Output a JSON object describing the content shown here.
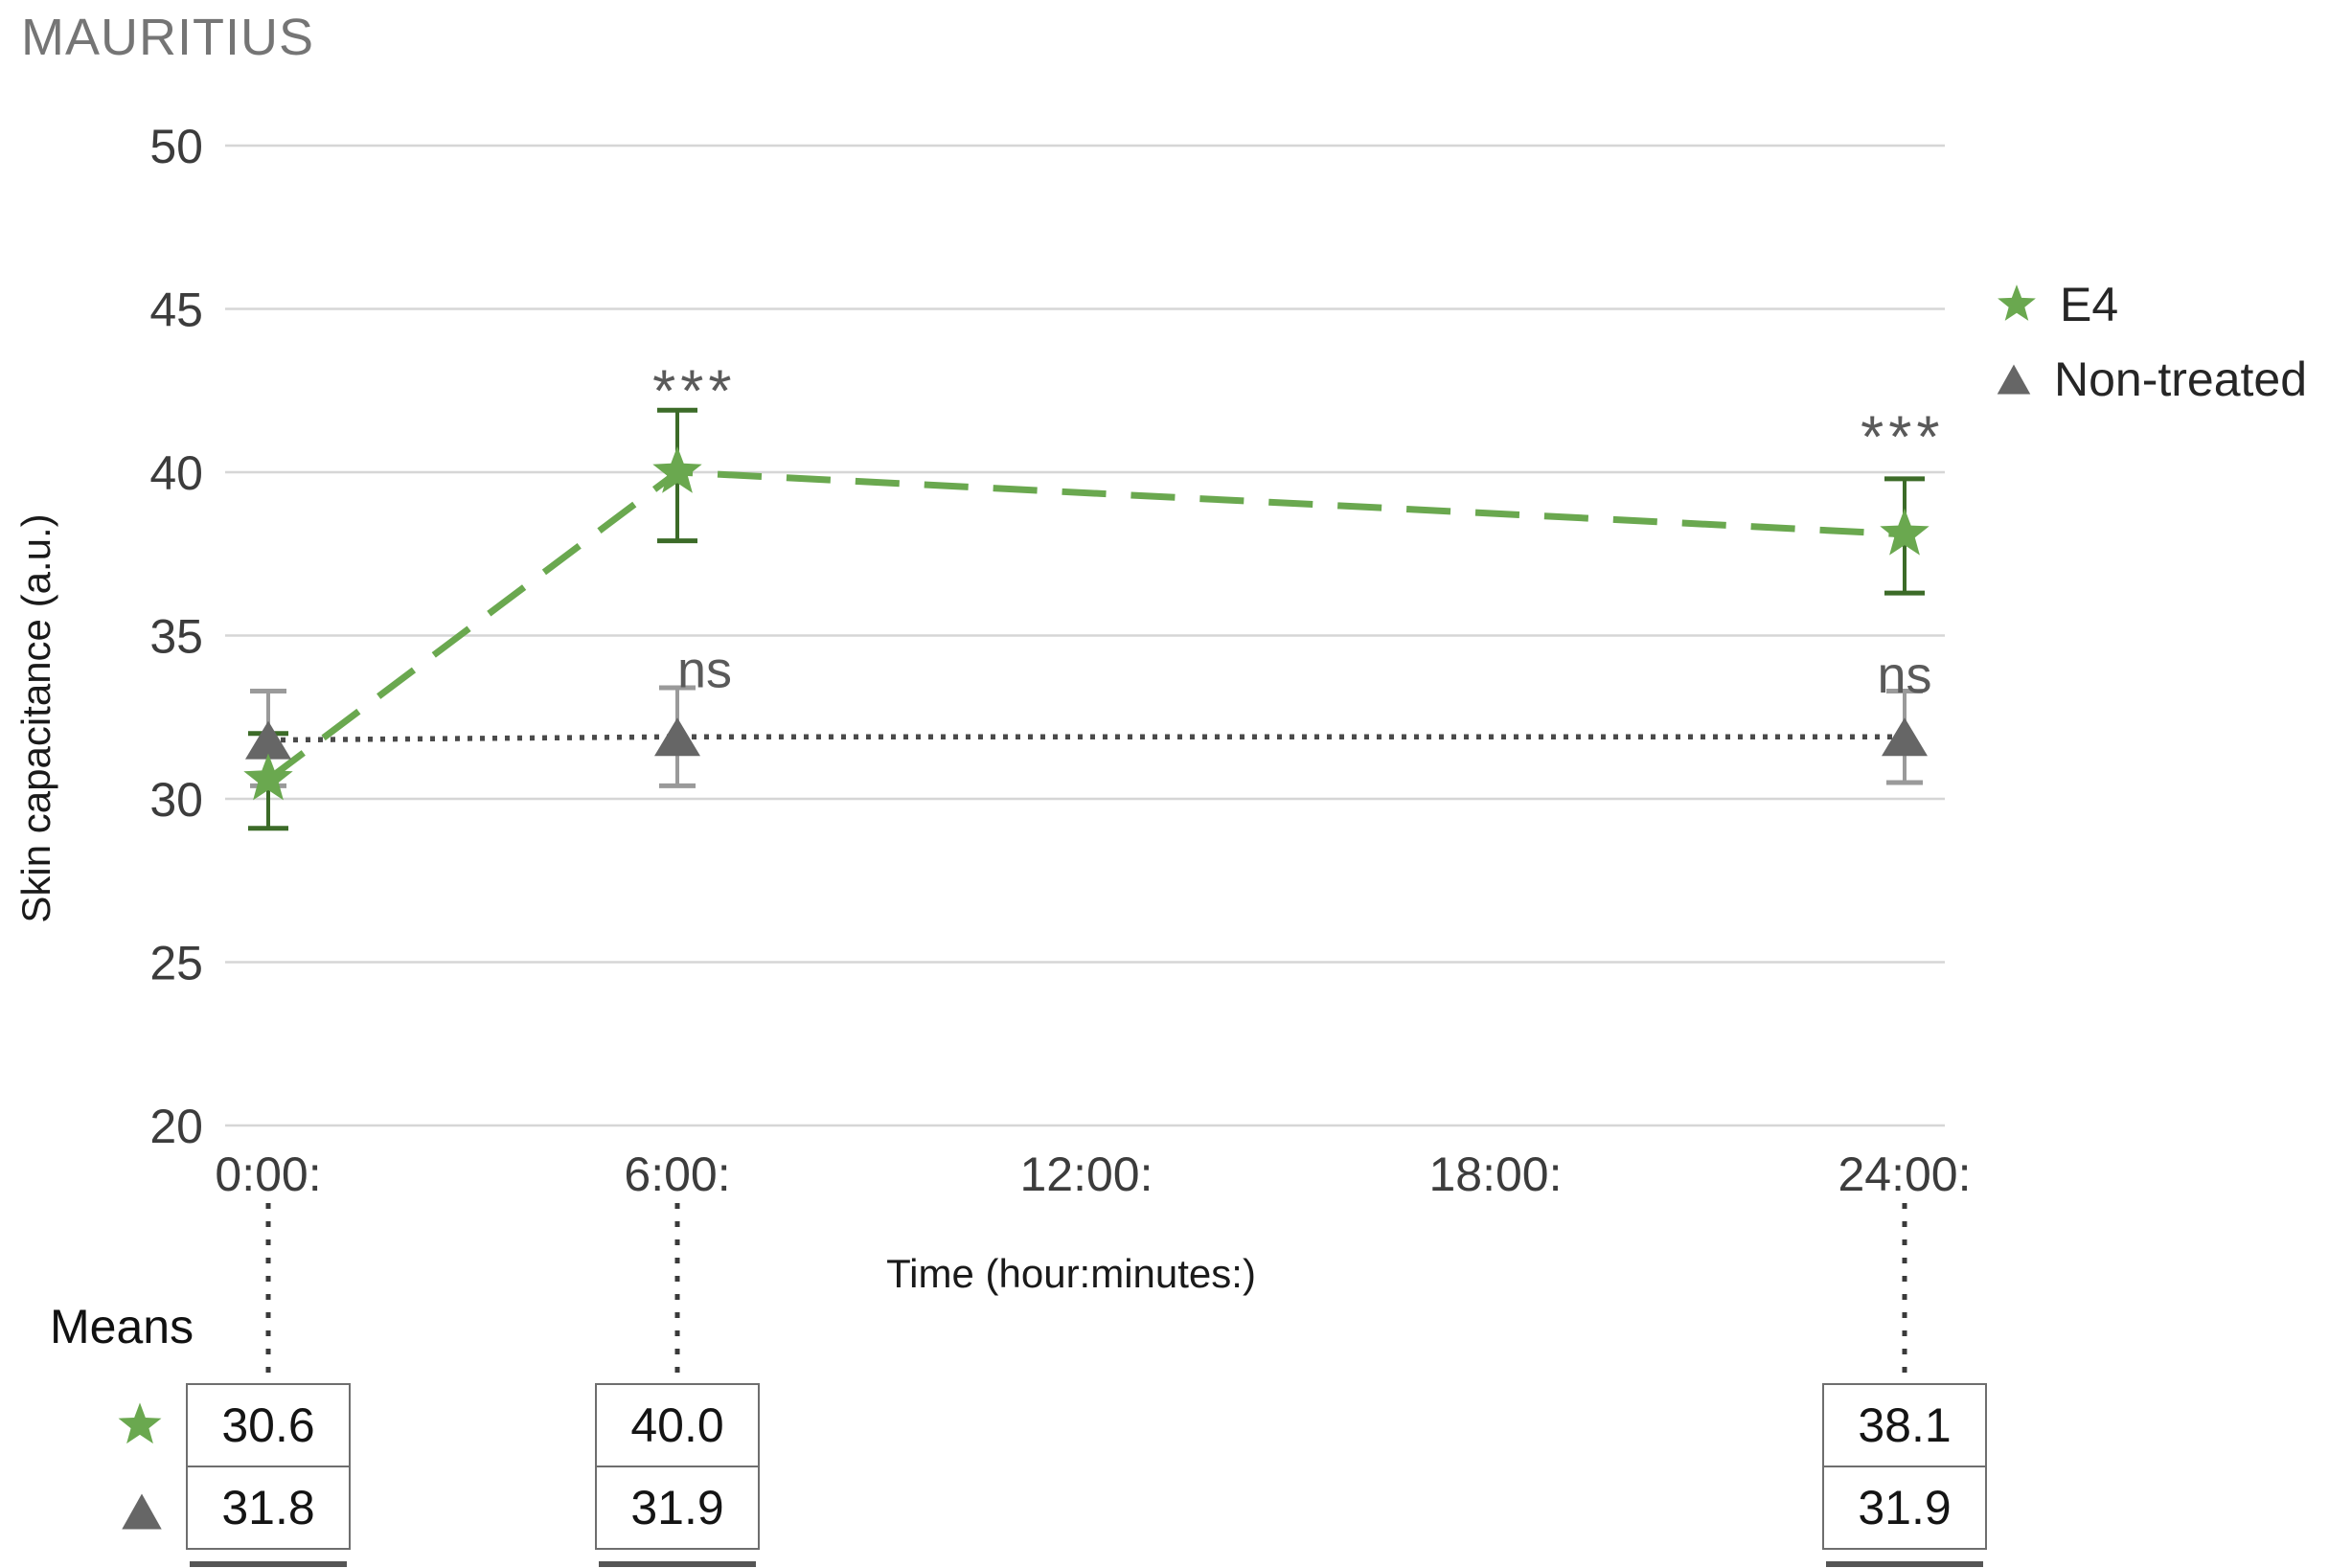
{
  "title": "MAURITIUS",
  "chart_data": {
    "type": "line",
    "title": "MAURITIUS",
    "xlabel": "Time (hour:minutes:)",
    "ylabel": "Skin capacitance (a.u.)",
    "ylim": [
      20,
      50
    ],
    "yticks": [
      50,
      45,
      40,
      35,
      30,
      25,
      20
    ],
    "xticks": [
      {
        "hour": 0,
        "label": "0:00:"
      },
      {
        "hour": 6,
        "label": "6:00:"
      },
      {
        "hour": 12,
        "label": "12:00:"
      },
      {
        "hour": 18,
        "label": "18:00:"
      },
      {
        "hour": 24,
        "label": "24:00:"
      }
    ],
    "grid": true,
    "legend_position": "right",
    "series": [
      {
        "name": "E4",
        "marker": "star",
        "color": "#6aa84f",
        "error_color": "#3c6b28",
        "line_style": "dashed",
        "points": [
          {
            "hour": 0,
            "value": 30.6,
            "err_plus": 1.4,
            "err_minus": 1.5
          },
          {
            "hour": 6,
            "value": 40.0,
            "err_plus": 1.9,
            "err_minus": 2.1
          },
          {
            "hour": 24,
            "value": 38.1,
            "err_plus": 1.7,
            "err_minus": 1.8
          }
        ]
      },
      {
        "name": "Non-treated",
        "marker": "triangle",
        "color": "#666666",
        "line_color": "#4a4a4a",
        "error_color": "#9a9a9a",
        "line_style": "dotted",
        "points": [
          {
            "hour": 0,
            "value": 31.8,
            "err_plus": 1.5,
            "err_minus": 1.4
          },
          {
            "hour": 6,
            "value": 31.9,
            "err_plus": 1.5,
            "err_minus": 1.5
          },
          {
            "hour": 24,
            "value": 31.9,
            "err_plus": 1.4,
            "err_minus": 1.4
          }
        ]
      }
    ],
    "annotations": [
      {
        "text": "***",
        "hour": 6.25,
        "value": 42.8,
        "kind": "stars"
      },
      {
        "text": "***",
        "hour": 23.97,
        "value": 41.4,
        "kind": "stars"
      },
      {
        "text": "ns",
        "hour": 6.4,
        "value": 33.85,
        "kind": "ns"
      },
      {
        "text": "ns",
        "hour": 24.0,
        "value": 33.7,
        "kind": "ns"
      }
    ],
    "means_table": {
      "label": "Means",
      "row_markers": [
        "star",
        "triangle"
      ],
      "columns": [
        {
          "hour": 0,
          "values": [
            "30.6",
            "31.8"
          ]
        },
        {
          "hour": 6,
          "values": [
            "40.0",
            "31.9"
          ]
        },
        {
          "hour": 24,
          "values": [
            "38.1",
            "31.9"
          ]
        }
      ]
    },
    "colors": {
      "grid": "#d6d6d6",
      "tick_text": "#3c3c3c",
      "annotation_text": "#5a5a5a",
      "connector": "#3a3a3a"
    }
  }
}
